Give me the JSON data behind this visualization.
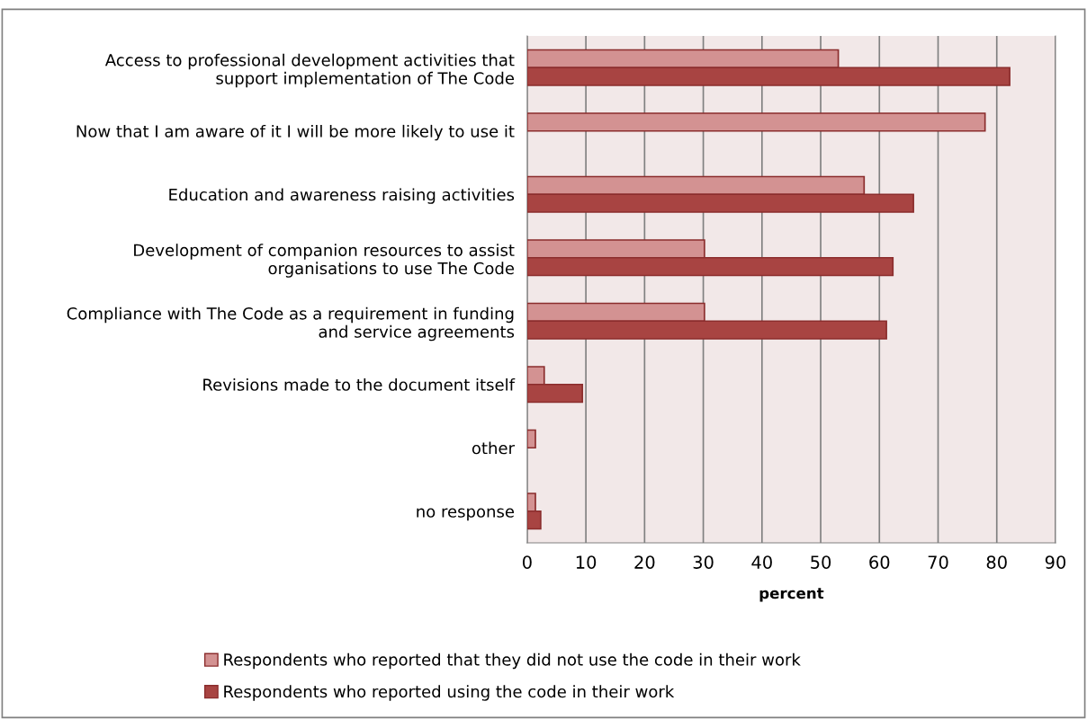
{
  "chart_data": {
    "type": "bar",
    "orientation": "horizontal",
    "xlabel": "percent",
    "categories": [
      "Access to professional development activities that\nsupport implementation of The Code",
      "Now that I am aware of it I will be more likely to use it",
      "Education and awareness raising activities",
      "Development of companion resources to assist\norganisations to use The Code",
      "Compliance with The Code as a requirement in funding\nand service agreements",
      "Revisions made to the document itself",
      "other",
      "no response"
    ],
    "series": [
      {
        "name": "Respondents who reported that they did not use the code in their work",
        "color": "#d39292",
        "values": [
          53,
          78,
          57.4,
          30.2,
          30.2,
          2.9,
          1.4,
          1.4
        ]
      },
      {
        "name": "Respondents who reported using the code in their work",
        "color": "#a84442",
        "values": [
          82.2,
          null,
          65.8,
          62.3,
          61.2,
          9.4,
          null,
          2.3
        ]
      }
    ],
    "xlim": [
      0,
      90
    ],
    "xticks": [
      0,
      10,
      20,
      30,
      40,
      50,
      60,
      70,
      80,
      90
    ],
    "grid": "x",
    "legend": "bottom"
  }
}
